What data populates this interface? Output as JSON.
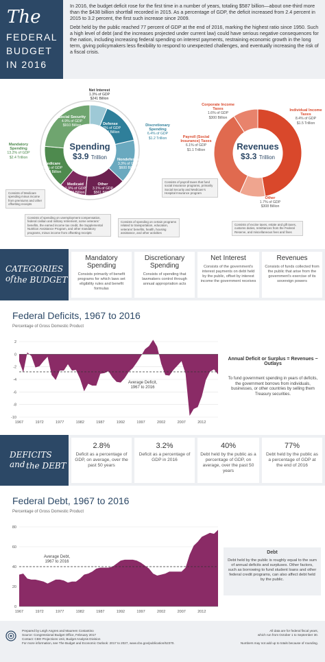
{
  "header": {
    "title_the": "The",
    "title_line1": "FEDERAL",
    "title_line2": "BUDGET",
    "title_line3": "IN 2016",
    "para1": "In 2016, the budget deficit rose for the first time in a number of years, totaling $587 billion—about one-third more than the $438 billion shortfall recorded in 2015. As a percentage of GDP, the deficit increased from 2.4 percent in 2015 to 3.2 percent, the first such increase since 2009.",
    "para2": "Debt held by the public reached 77 percent of GDP at the end of 2016, marking the highest ratio since 1950. Such a high level of debt (and the increases projected under current law) could have serious negative consequences for the nation, including increasing federal spending on interest payments, restraining economic growth in the long term, giving policymakers less flexibility to respond to unexpected challenges, and eventually increasing the risk of a fiscal crisis."
  },
  "spending": {
    "title": "Spending",
    "amount": "$3.9",
    "unit": "Trillion",
    "net_interest": {
      "label": "Net Interest",
      "pct": "1.3% of GDP",
      "amt": "$241 Billion"
    },
    "social_security": {
      "label": "Social Security",
      "pct": "4.9% of GDP",
      "amt": "$910 Billion"
    },
    "defense": {
      "label": "Defense",
      "pct": "3.2% of GDP",
      "amt": "$584 Billion"
    },
    "nondefense": {
      "label": "Nondefense",
      "pct": "3.3% of GDP",
      "amt": "$600 Billion"
    },
    "medicare": {
      "label": "Medicare",
      "pct": "3.2% of GDP",
      "amt": "$588 Billion"
    },
    "medicaid": {
      "label": "Medicaid",
      "pct": "1.9% of GDP",
      "amt": "$368 Billion"
    },
    "other": {
      "label": "Other",
      "pct": "3.1% of GDP",
      "amt": "$561 Billion"
    },
    "mandatory": {
      "label": "Mandatory Spending",
      "pct": "13.2% of GDP",
      "amt": "$2.4 Trillion"
    },
    "discretionary": {
      "label": "Discretionary Spending",
      "pct": "6.4% of GDP",
      "amt": "$1.2 Trillion"
    },
    "note_medicare": "Consists of Medicare spending minus income from premiums and other offsetting receipts",
    "note_other": "Consists of spending on unemployment compensation, federal civilian and military retirement, some veterans' benefits, the earned income tax credit, the Supplemental Nutrition Assistance Program, and other mandatory programs, minus income from offsetting receipts",
    "note_nondefense": "Consists of spending on certain programs related to transportation, education, veterans' benefits, health, housing assistance, and other activities"
  },
  "revenues": {
    "title": "Revenues",
    "amount": "$3.3",
    "unit": "Trillion",
    "corporate": {
      "label": "Corporate Income Taxes",
      "pct": "1.6% of GDP",
      "amt": "$300 Billion"
    },
    "individual": {
      "label": "Individual Income Taxes",
      "pct": "8.4% of GDP",
      "amt": "$1.5 Trillion"
    },
    "payroll": {
      "label": "Payroll (Social Insurance) Taxes",
      "pct": "6.1% of GDP",
      "amt": "$1.1 Trillion"
    },
    "other": {
      "label": "Other",
      "pct": "1.7% of GDP",
      "amt": "$308 Billion"
    },
    "note_payroll": "Consists of payroll taxes that fund social insurance programs, primarily Social Security and Medicare's Hospital Insurance program",
    "note_other": "Consists of excise taxes, estate and gift taxes, customs duties, remittances from the Federal Reserve, and miscellaneous fees and fines"
  },
  "categories": {
    "band_line1": "CATEGORIES of",
    "band_line2": "the BUDGET",
    "items": [
      {
        "title": "Mandatory Spending",
        "desc": "Consists primarily of benefit programs for which laws set eligibility rules and benefit formulas"
      },
      {
        "title": "Discretionary Spending",
        "desc": "Consists of spending that lawmakers control through annual appropriation acts"
      },
      {
        "title": "Net Interest",
        "desc": "Consists of the government's interest payments on debt held by the public, offset by interest income the government receives"
      },
      {
        "title": "Revenues",
        "desc": "Consists of funds collected from the public that arise from the government's exercise of its sovereign powers"
      }
    ]
  },
  "deficits_chart": {
    "title": "Federal Deficits, 1967 to 2016",
    "subtitle": "Percentage of Gross Domestic Product",
    "avg_label_1": "Average Deficit,",
    "avg_label_2": "1967 to 2016",
    "side_title": "Annual Deficit or Surplus = Revenues − Outlays",
    "side_text": "To fund government spending in years of deficits, the government borrows from individuals, businesses, or other countries by selling them Treasury securities."
  },
  "deficits_stats": {
    "band_line1": "DEFICITS and",
    "band_line2": "the DEBT",
    "items": [
      {
        "value": "2.8%",
        "desc": "Deficit as a percentage of GDP, on average, over the past 50 years"
      },
      {
        "value": "3.2%",
        "desc": "Deficit as a percentage of GDP in 2016"
      },
      {
        "value": "40%",
        "desc": "Debt held by the public as a percentage of GDP, on average, over the past 50 years"
      },
      {
        "value": "77%",
        "desc": "Debt held by the public as a percentage of GDP at the end of 2016"
      }
    ]
  },
  "debt_chart": {
    "title": "Federal Debt, 1967 to 2016",
    "subtitle": "Percentage of Gross Domestic Product",
    "avg_label_1": "Average Debt,",
    "avg_label_2": "1967 to 2016",
    "side_title": "Debt",
    "side_text": "Debt held by the public is roughly equal to the sum of annual deficits and surpluses. Other factors, such as borrowing to fund student loans and other federal credit programs, can also affect debt held by the public."
  },
  "footer": {
    "line1": "Prepared by Leigh Angres and Maureen Costantino",
    "line2": "Source: Congressional Budget Office, February 2017",
    "line3": "Contact: CBO Projections Unit, Budget Analysis Division",
    "line4": "For more information, see The Budget and Economic Outlook: 2017 to 2027, www.cbo.gov/publication/52370.",
    "right1": "All data are for federal fiscal years,",
    "right2": "which run from October 1 to September 30.",
    "right3": "Numbers may not add up to totals because of rounding."
  },
  "colors": {
    "navy": "#2c4866",
    "teal": "#2f7f9a",
    "green": "#4e8a4e",
    "purple": "#8a2b66",
    "orange": "#d9482b",
    "light_orange": "#e8836c"
  },
  "chart_data": [
    {
      "type": "area",
      "title": "Federal Deficits, 1967 to 2016",
      "ylabel": "Percentage of Gross Domestic Product",
      "x_ticks": [
        "1967",
        "1972",
        "1977",
        "1982",
        "1987",
        "1992",
        "1997",
        "2002",
        "2007",
        "2012"
      ],
      "ylim": [
        -10,
        2
      ],
      "y_ticks": [
        2,
        0,
        -2,
        -4,
        -6,
        -8,
        -10
      ],
      "average": -2.8,
      "x": [
        1967,
        1968,
        1969,
        1970,
        1971,
        1972,
        1973,
        1974,
        1975,
        1976,
        1977,
        1978,
        1979,
        1980,
        1981,
        1982,
        1983,
        1984,
        1985,
        1986,
        1987,
        1988,
        1989,
        1990,
        1991,
        1992,
        1993,
        1994,
        1995,
        1996,
        1997,
        1998,
        1999,
        2000,
        2001,
        2002,
        2003,
        2004,
        2005,
        2006,
        2007,
        2008,
        2009,
        2010,
        2011,
        2012,
        2013,
        2014,
        2015,
        2016
      ],
      "values": [
        -1.1,
        -2.9,
        0.3,
        -0.3,
        -2.1,
        -1.9,
        -1.1,
        -0.4,
        -3.3,
        -4.1,
        -2.6,
        -2.6,
        -1.6,
        -2.6,
        -2.5,
        -3.9,
        -5.9,
        -4.7,
        -5.0,
        -5.0,
        -3.1,
        -3.0,
        -2.7,
        -3.7,
        -4.4,
        -4.5,
        -3.8,
        -2.8,
        -2.2,
        -1.3,
        -0.3,
        0.8,
        1.3,
        2.3,
        1.2,
        -1.5,
        -3.3,
        -3.4,
        -2.5,
        -1.8,
        -1.1,
        -3.1,
        -9.8,
        -8.7,
        -8.4,
        -6.7,
        -4.1,
        -2.8,
        -2.4,
        -3.2
      ]
    },
    {
      "type": "area",
      "title": "Federal Debt, 1967 to 2016",
      "ylabel": "Percentage of Gross Domestic Product",
      "x_ticks": [
        "1967",
        "1972",
        "1977",
        "1982",
        "1987",
        "1992",
        "1997",
        "2002",
        "2007",
        "2012"
      ],
      "ylim": [
        0,
        80
      ],
      "y_ticks": [
        80,
        60,
        40,
        20,
        0
      ],
      "average": 40,
      "x": [
        1967,
        1968,
        1969,
        1970,
        1971,
        1972,
        1973,
        1974,
        1975,
        1976,
        1977,
        1978,
        1979,
        1980,
        1981,
        1982,
        1983,
        1984,
        1985,
        1986,
        1987,
        1988,
        1989,
        1990,
        1991,
        1992,
        1993,
        1994,
        1995,
        1996,
        1997,
        1998,
        1999,
        2000,
        2001,
        2002,
        2003,
        2004,
        2005,
        2006,
        2007,
        2008,
        2009,
        2010,
        2011,
        2012,
        2013,
        2014,
        2015,
        2016
      ],
      "values": [
        32,
        33,
        28,
        27,
        27,
        26,
        25,
        23,
        25,
        27,
        27,
        26,
        24,
        25,
        25,
        28,
        32,
        33,
        35,
        38,
        39,
        39,
        39,
        40,
        43,
        46,
        47,
        47,
        47,
        46,
        44,
        41,
        38,
        33,
        31,
        32,
        33,
        35,
        35,
        35,
        35,
        39,
        52,
        61,
        65,
        70,
        72,
        74,
        73,
        77
      ]
    },
    {
      "type": "pie",
      "title": "Spending",
      "categories": [
        "Net Interest",
        "Defense",
        "Nondefense",
        "Other",
        "Medicaid",
        "Medicare",
        "Social Security"
      ],
      "values": [
        241,
        584,
        600,
        561,
        368,
        588,
        910
      ]
    },
    {
      "type": "pie",
      "title": "Revenues",
      "categories": [
        "Individual Income Taxes",
        "Other",
        "Payroll (Social Insurance) Taxes",
        "Corporate Income Taxes"
      ],
      "values": [
        1546,
        308,
        1115,
        300
      ]
    }
  ]
}
